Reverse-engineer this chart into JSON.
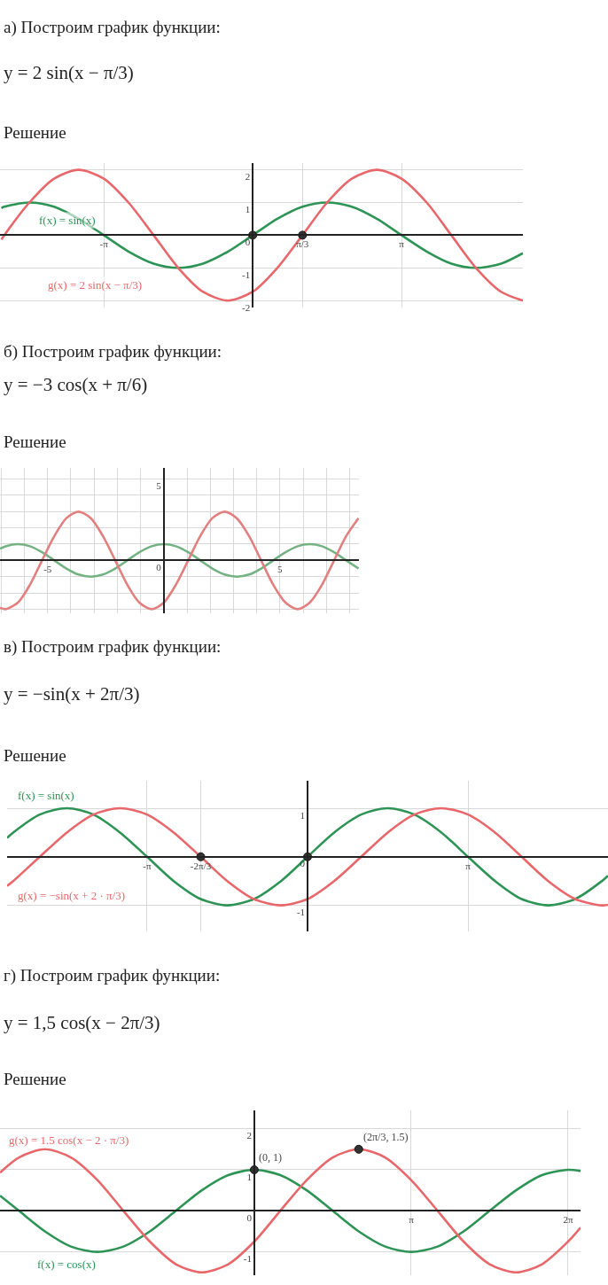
{
  "chart_data": [
    {
      "type": "line",
      "title": "а) Построим график функции:",
      "subtitle": "y = 2 sin(x − π/3)",
      "annotations": [
        "Решение"
      ],
      "xlim": [
        -5.33,
        5.7
      ],
      "ylim": [
        -2.2,
        2.2
      ],
      "xticks": [
        {
          "value": -3.14,
          "label": "-π"
        },
        {
          "value": 1.05,
          "label": "π/3"
        },
        {
          "value": 3.14,
          "label": "π"
        }
      ],
      "yticks": [
        -2,
        -1,
        0,
        1,
        2
      ],
      "grid": true,
      "x": [
        -5.3,
        -5.24,
        -4.71,
        -4.19,
        -3.67,
        -3.14,
        -2.62,
        -2.09,
        -1.57,
        -1.05,
        -0.52,
        0,
        0.52,
        1.05,
        1.57,
        2.09,
        2.62,
        3.14,
        3.67,
        4.19,
        4.71,
        5.24,
        5.7
      ],
      "series": [
        {
          "name": "f(x) = sin(x)",
          "color": "#2e9455",
          "values": [
            0.83,
            0.87,
            1,
            0.87,
            0.5,
            0,
            -0.5,
            -0.87,
            -1,
            -0.87,
            -0.5,
            0,
            0.5,
            0.87,
            1,
            0.87,
            0.5,
            0,
            -0.5,
            -0.87,
            -1,
            -0.87,
            -0.55
          ]
        },
        {
          "name": "g(x) = 2 sin(x − π/3)",
          "color": "#e8676b",
          "values": [
            -0.13,
            0,
            1,
            1.73,
            2,
            1.73,
            1,
            0,
            -1,
            -1.73,
            -2,
            -1.73,
            -1,
            0,
            1,
            1.73,
            2,
            1.73,
            1,
            0,
            -1,
            -1.73,
            -2.0
          ]
        },
        {
          "type": "scatter",
          "marker": "circle",
          "color": "#333333",
          "x": [
            0,
            1.05
          ],
          "values": [
            0,
            0
          ]
        }
      ]
    },
    {
      "type": "line",
      "title": "б) Построим график функции:",
      "subtitle": "y = −3 cos(x + π/6)",
      "annotations": [
        "Решение"
      ],
      "xlim": [
        -7.05,
        8.4
      ],
      "ylim": [
        -3.26,
        5.7
      ],
      "xticks": [
        {
          "value": -7,
          "label": null
        },
        {
          "value": -6,
          "label": null
        },
        -5,
        {
          "value": -4,
          "label": null
        },
        {
          "value": -3,
          "label": null
        },
        {
          "value": -2,
          "label": null
        },
        {
          "value": -1,
          "label": null
        },
        {
          "value": 0,
          "label": null
        },
        {
          "value": 1,
          "label": null
        },
        {
          "value": 2,
          "label": null
        },
        {
          "value": 3,
          "label": null
        },
        {
          "value": 4,
          "label": null
        },
        5,
        {
          "value": 6,
          "label": null
        },
        {
          "value": 7,
          "label": null
        },
        {
          "value": 8,
          "label": null
        }
      ],
      "yticks": [
        {
          "value": -3,
          "label": null
        },
        {
          "value": -2,
          "label": null
        },
        {
          "value": -1,
          "label": null
        },
        0,
        {
          "value": 1,
          "label": null
        },
        {
          "value": 2,
          "label": null
        },
        {
          "value": 3,
          "label": null
        },
        {
          "value": 4,
          "label": null
        },
        5
      ],
      "grid": true,
      "x": [
        -7.05,
        -6.81,
        -6.28,
        -5.76,
        -5.24,
        -4.71,
        -4.19,
        -3.67,
        -3.14,
        -2.62,
        -2.09,
        -1.57,
        -1.05,
        -0.52,
        0,
        0.52,
        1.05,
        1.57,
        2.09,
        2.62,
        3.14,
        3.67,
        4.19,
        4.71,
        5.24,
        5.76,
        6.28,
        6.81,
        7.33,
        7.85,
        8.38
      ],
      "series": [
        {
          "color": "#74b283",
          "values": [
            0.72,
            0.87,
            1,
            0.87,
            0.5,
            0,
            -0.5,
            -0.87,
            -1,
            -0.87,
            -0.5,
            0,
            0.5,
            0.87,
            1,
            0.87,
            0.5,
            0,
            -0.5,
            -0.87,
            -1,
            -0.87,
            -0.5,
            0,
            0.5,
            0.87,
            1,
            0.87,
            0.5,
            0,
            -0.5
          ]
        },
        {
          "color": "#e27f7f",
          "values": [
            -2.91,
            -3,
            -2.6,
            -1.5,
            0,
            1.5,
            2.6,
            3,
            2.6,
            1.5,
            0,
            -1.5,
            -2.6,
            -3,
            -2.6,
            -1.5,
            0,
            1.5,
            2.6,
            3,
            2.6,
            1.5,
            0,
            -1.5,
            -2.6,
            -3,
            -2.6,
            -1.5,
            0,
            1.5,
            2.6
          ]
        }
      ]
    },
    {
      "type": "line",
      "title": "в) Построим график функции:",
      "subtitle": "y = −sin(x + 2π/3)",
      "annotations": [
        "Решение"
      ],
      "xlim": [
        -5.88,
        5.88
      ],
      "ylim": [
        -1.53,
        1.56
      ],
      "xticks": [
        {
          "value": -3.14,
          "label": "-π"
        },
        {
          "value": -2.09,
          "label": "-2π/3"
        },
        {
          "value": 3.14,
          "label": "π"
        }
      ],
      "yticks": [
        -1,
        0,
        1
      ],
      "grid": true,
      "x": [
        -5.88,
        -5.76,
        -5.24,
        -4.71,
        -4.19,
        -3.67,
        -3.14,
        -2.62,
        -2.09,
        -1.57,
        -1.05,
        -0.52,
        0,
        0.52,
        1.05,
        1.57,
        2.09,
        2.62,
        3.14,
        3.67,
        4.19,
        4.71,
        5.24,
        5.76,
        5.88
      ],
      "series": [
        {
          "name": "f(x) = sin(x)",
          "color": "#2e9455",
          "values": [
            0.39,
            0.5,
            0.87,
            1,
            0.87,
            0.5,
            0,
            -0.5,
            -0.87,
            -1,
            -0.87,
            -0.5,
            0,
            0.5,
            0.87,
            1,
            0.87,
            0.5,
            0,
            -0.5,
            -0.87,
            -1,
            -0.87,
            -0.5,
            -0.39
          ]
        },
        {
          "name": "g(x) = −sin(x + 2 · π/3)",
          "color": "#e8676b",
          "values": [
            -0.6,
            -0.5,
            0,
            0.5,
            0.87,
            1,
            0.87,
            0.5,
            0,
            -0.5,
            -0.87,
            -1,
            -0.87,
            -0.5,
            0,
            0.5,
            0.87,
            1,
            0.87,
            0.5,
            0,
            -0.5,
            -0.87,
            -1,
            -0.99
          ]
        },
        {
          "type": "scatter",
          "marker": "circle",
          "color": "#333333",
          "x": [
            -2.09,
            0
          ],
          "values": [
            0,
            0
          ]
        }
      ]
    },
    {
      "type": "line",
      "title": "г) Построим график функции:",
      "subtitle": "y = 1,5 cos(x − 2π/3)",
      "annotations": [
        "Решение",
        {
          "text": "(0, 1)",
          "x": 0,
          "y": 1
        },
        {
          "text": "(2π/3, 1.5)",
          "x": 2.09,
          "y": 1.5
        }
      ],
      "xlim": [
        -5.09,
        6.53
      ],
      "ylim": [
        -1.57,
        2.45
      ],
      "xticks": [
        {
          "value": 3.14,
          "label": "π"
        },
        {
          "value": 6.28,
          "label": "2π"
        }
      ],
      "yticks": [
        -1,
        0,
        1,
        2
      ],
      "grid": true,
      "x": [
        -5.09,
        -4.71,
        -4.19,
        -3.67,
        -3.14,
        -2.62,
        -2.09,
        -1.57,
        -1.05,
        -0.52,
        0,
        0.52,
        1.05,
        1.57,
        2.09,
        2.62,
        3.14,
        3.67,
        4.19,
        4.71,
        5.24,
        5.76,
        6.28,
        6.53
      ],
      "series": [
        {
          "name": "f(x) = cos(x)",
          "color": "#2e9455",
          "values": [
            0.37,
            0,
            -0.5,
            -0.87,
            -1,
            -0.87,
            -0.5,
            0,
            0.5,
            0.87,
            1,
            0.87,
            0.5,
            0,
            -0.5,
            -0.87,
            -1,
            -0.87,
            -0.5,
            0,
            0.5,
            0.87,
            1,
            0.97
          ]
        },
        {
          "name": "g(x) = 1.5 cos(x − 2 · π/3)",
          "color": "#e8676b",
          "values": [
            0.93,
            1.3,
            1.5,
            1.3,
            0.75,
            0,
            -0.75,
            -1.3,
            -1.5,
            -1.3,
            -0.75,
            0,
            0.75,
            1.3,
            1.5,
            1.3,
            0.75,
            0,
            -0.75,
            -1.3,
            -1.5,
            -1.3,
            -0.75,
            -0.41
          ]
        },
        {
          "type": "scatter",
          "marker": "circle",
          "color": "#333333",
          "x": [
            0,
            2.09
          ],
          "values": [
            1,
            1.5
          ]
        }
      ]
    }
  ]
}
